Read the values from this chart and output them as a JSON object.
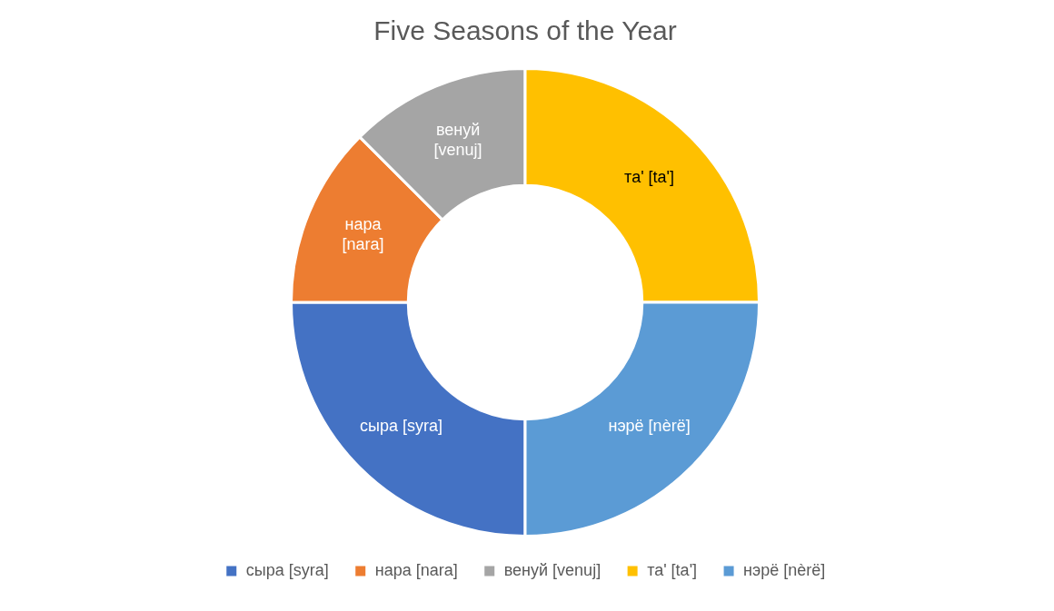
{
  "chart_data": {
    "type": "donut",
    "title": "Five Seasons of the Year",
    "categories": [
      "сыра [syra]",
      "нара [nara]",
      "венуй [venuj]",
      "та' [ta']",
      "нэрё [nèrë]"
    ],
    "values": [
      25,
      12.5,
      12.5,
      25,
      25
    ],
    "colors": [
      "#4472c4",
      "#ed7d31",
      "#a5a5a5",
      "#ffc000",
      "#5b9bd5"
    ],
    "legend": "bottom"
  }
}
